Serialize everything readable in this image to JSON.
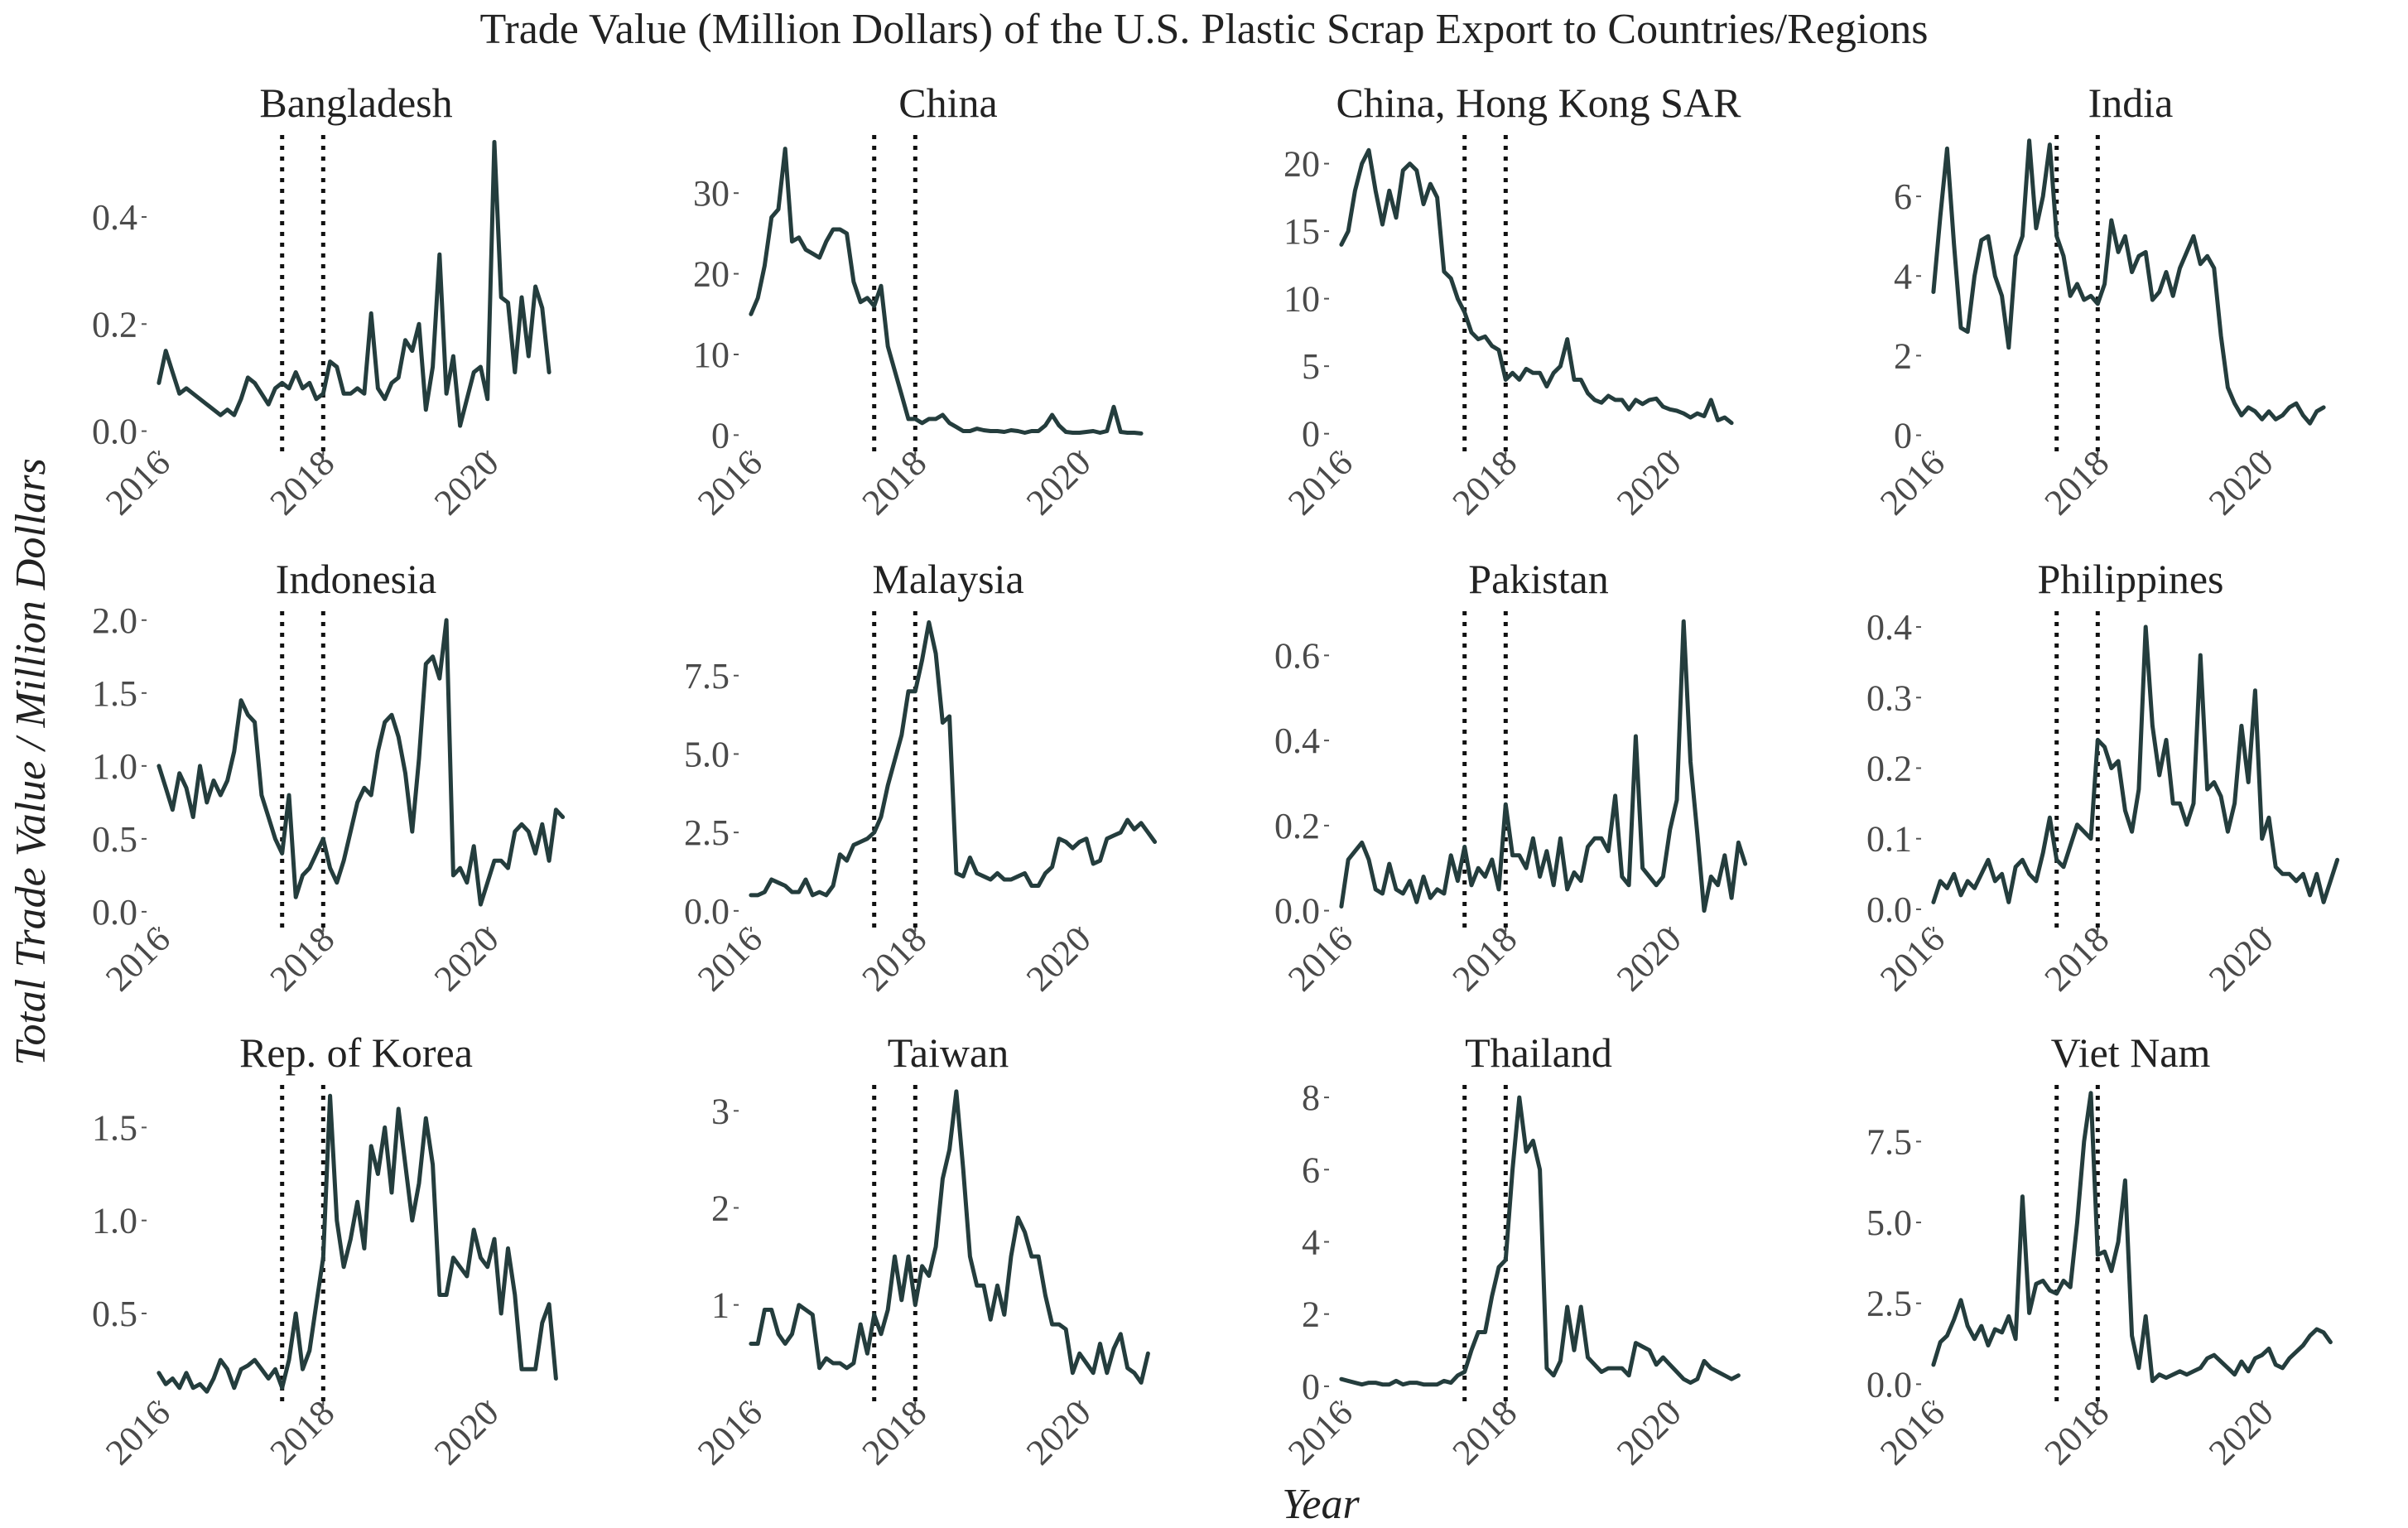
{
  "title": "Trade Value (Million Dollars) of the U.S. Plastic Scrap Export to Countries/Regions",
  "xlabel": "Year",
  "ylabel": "Total Trade Value / Million Dollars",
  "line_color": "#243d3d",
  "chart_data": {
    "type": "line",
    "title": "Trade Value (Million Dollars) of the U.S. Plastic Scrap Export to Countries/Regions",
    "xlabel": "Year",
    "ylabel": "Total Trade Value / Million Dollars",
    "grid": false,
    "x_start": 2016.0,
    "x_step": 0.08333,
    "xlim": [
      2015.88,
      2020.92
    ],
    "x_ticks": [
      2016,
      2018,
      2020
    ],
    "x_tick_labels": [
      "2016",
      "2018",
      "2020"
    ],
    "reference_lines": [
      2017.5,
      2018.0
    ],
    "panels": [
      {
        "name": "Bangladesh",
        "ylim": [
          -0.03,
          0.55
        ],
        "y_ticks": [
          0.0,
          0.2,
          0.4
        ],
        "y_tick_labels": [
          "0.0",
          "0.2",
          "0.4"
        ],
        "values": [
          0.09,
          0.15,
          0.11,
          0.07,
          0.08,
          0.07,
          0.06,
          0.05,
          0.04,
          0.03,
          0.04,
          0.03,
          0.06,
          0.1,
          0.09,
          0.07,
          0.05,
          0.08,
          0.09,
          0.08,
          0.11,
          0.08,
          0.09,
          0.06,
          0.07,
          0.13,
          0.12,
          0.07,
          0.07,
          0.08,
          0.07,
          0.22,
          0.08,
          0.06,
          0.09,
          0.1,
          0.17,
          0.15,
          0.2,
          0.04,
          0.12,
          0.33,
          0.07,
          0.14,
          0.01,
          0.06,
          0.11,
          0.12,
          0.06,
          0.54,
          0.25,
          0.24,
          0.11,
          0.25,
          0.14,
          0.27,
          0.23,
          0.11
        ]
      },
      {
        "name": "China",
        "ylim": [
          -1.5,
          37
        ],
        "y_ticks": [
          0,
          10,
          20,
          30
        ],
        "y_tick_labels": [
          "0",
          "10",
          "20",
          "30"
        ],
        "values": [
          15,
          17,
          21,
          27,
          28,
          35.5,
          24,
          24.5,
          23,
          22.5,
          22,
          24,
          25.5,
          25.5,
          25,
          19,
          16.5,
          17,
          16,
          18.5,
          11,
          8,
          5,
          2,
          2,
          1.5,
          2,
          2,
          2.5,
          1.5,
          1,
          0.5,
          0.5,
          0.8,
          0.6,
          0.5,
          0.5,
          0.4,
          0.6,
          0.5,
          0.3,
          0.5,
          0.5,
          1.2,
          2.5,
          1.2,
          0.4,
          0.3,
          0.3,
          0.4,
          0.5,
          0.3,
          0.5,
          3.5,
          0.4,
          0.3,
          0.3,
          0.2
        ]
      },
      {
        "name": "China, Hong Kong SAR",
        "ylim": [
          -1,
          22
        ],
        "y_ticks": [
          0,
          5,
          10,
          15,
          20
        ],
        "y_tick_labels": [
          "0",
          "5",
          "10",
          "15",
          "20"
        ],
        "values": [
          14,
          15,
          18,
          20,
          21,
          18,
          15.5,
          18,
          16,
          19.5,
          20,
          19.5,
          17,
          18.5,
          17.5,
          12,
          11.5,
          10,
          9,
          7.5,
          7,
          7.2,
          6.5,
          6.2,
          4,
          4.5,
          4,
          4.8,
          4.5,
          4.5,
          3.5,
          4.5,
          5,
          7,
          4,
          4,
          3,
          2.5,
          2.3,
          2.8,
          2.5,
          2.5,
          1.8,
          2.5,
          2.2,
          2.5,
          2.6,
          2.0,
          1.8,
          1.7,
          1.5,
          1.2,
          1.5,
          1.3,
          2.5,
          1.0,
          1.2,
          0.8
        ]
      },
      {
        "name": "India",
        "ylim": [
          -0.3,
          7.5
        ],
        "y_ticks": [
          0,
          2,
          4,
          6
        ],
        "y_tick_labels": [
          "0",
          "2",
          "4",
          "6"
        ],
        "values": [
          3.6,
          5.5,
          7.2,
          4.8,
          2.7,
          2.6,
          4,
          4.9,
          5,
          4,
          3.5,
          2.2,
          4.5,
          5,
          7.4,
          5.2,
          6,
          7.3,
          5,
          4.5,
          3.5,
          3.8,
          3.4,
          3.5,
          3.3,
          3.8,
          5.4,
          4.6,
          5,
          4.1,
          4.5,
          4.6,
          3.4,
          3.6,
          4.1,
          3.5,
          4.2,
          4.6,
          5,
          4.3,
          4.5,
          4.2,
          2.5,
          1.2,
          0.8,
          0.5,
          0.7,
          0.6,
          0.4,
          0.6,
          0.4,
          0.5,
          0.7,
          0.8,
          0.5,
          0.3,
          0.6,
          0.7
        ]
      },
      {
        "name": "Indonesia",
        "ylim": [
          -0.08,
          2.05
        ],
        "y_ticks": [
          0.0,
          0.5,
          1.0,
          1.5,
          2.0
        ],
        "y_tick_labels": [
          "0.0",
          "0.5",
          "1.0",
          "1.5",
          "2.0"
        ],
        "values": [
          1.0,
          0.85,
          0.7,
          0.95,
          0.85,
          0.65,
          1.0,
          0.75,
          0.9,
          0.8,
          0.9,
          1.1,
          1.45,
          1.35,
          1.3,
          0.8,
          0.65,
          0.5,
          0.4,
          0.8,
          0.1,
          0.25,
          0.3,
          0.4,
          0.5,
          0.3,
          0.2,
          0.35,
          0.55,
          0.75,
          0.85,
          0.8,
          1.1,
          1.3,
          1.35,
          1.2,
          0.95,
          0.55,
          1.05,
          1.7,
          1.75,
          1.6,
          2.0,
          0.25,
          0.3,
          0.2,
          0.45,
          0.05,
          0.2,
          0.35,
          0.35,
          0.3,
          0.55,
          0.6,
          0.55,
          0.4,
          0.6,
          0.35,
          0.7,
          0.65
        ]
      },
      {
        "name": "Malaysia",
        "ylim": [
          -0.4,
          9.5
        ],
        "y_ticks": [
          0.0,
          2.5,
          5.0,
          7.5
        ],
        "y_tick_labels": [
          "0.0",
          "2.5",
          "5.0",
          "7.5"
        ],
        "values": [
          0.5,
          0.5,
          0.6,
          1.0,
          0.9,
          0.8,
          0.6,
          0.6,
          1.0,
          0.5,
          0.6,
          0.5,
          0.8,
          1.8,
          1.6,
          2.1,
          2.2,
          2.3,
          2.5,
          3.0,
          4.0,
          4.8,
          5.6,
          7.0,
          7.0,
          8.0,
          9.2,
          8.2,
          6.0,
          6.2,
          1.2,
          1.1,
          1.7,
          1.2,
          1.1,
          1.0,
          1.2,
          1.0,
          1.0,
          1.1,
          1.2,
          0.8,
          0.8,
          1.2,
          1.4,
          2.3,
          2.2,
          2.0,
          2.2,
          2.3,
          1.5,
          1.6,
          2.3,
          2.4,
          2.5,
          2.9,
          2.6,
          2.8,
          2.5,
          2.2
        ]
      },
      {
        "name": "Pakistan",
        "ylim": [
          -0.03,
          0.7
        ],
        "y_ticks": [
          0.0,
          0.2,
          0.4,
          0.6
        ],
        "y_tick_labels": [
          "0.0",
          "0.2",
          "0.4",
          "0.6"
        ],
        "values": [
          0.01,
          0.12,
          0.14,
          0.16,
          0.12,
          0.05,
          0.04,
          0.11,
          0.05,
          0.04,
          0.07,
          0.02,
          0.08,
          0.03,
          0.05,
          0.04,
          0.13,
          0.07,
          0.15,
          0.06,
          0.1,
          0.08,
          0.12,
          0.05,
          0.25,
          0.13,
          0.13,
          0.1,
          0.17,
          0.08,
          0.14,
          0.06,
          0.17,
          0.05,
          0.09,
          0.07,
          0.15,
          0.17,
          0.17,
          0.14,
          0.27,
          0.08,
          0.06,
          0.41,
          0.1,
          0.08,
          0.06,
          0.08,
          0.19,
          0.26,
          0.68,
          0.35,
          0.18,
          0.0,
          0.08,
          0.06,
          0.13,
          0.03,
          0.16,
          0.11
        ]
      },
      {
        "name": "Philippines",
        "ylim": [
          -0.02,
          0.42
        ],
        "y_ticks": [
          0.0,
          0.1,
          0.2,
          0.3,
          0.4
        ],
        "y_tick_labels": [
          "0.0",
          "0.1",
          "0.2",
          "0.3",
          "0.4"
        ],
        "values": [
          0.01,
          0.04,
          0.03,
          0.05,
          0.02,
          0.04,
          0.03,
          0.05,
          0.07,
          0.04,
          0.05,
          0.01,
          0.06,
          0.07,
          0.05,
          0.04,
          0.08,
          0.13,
          0.07,
          0.06,
          0.09,
          0.12,
          0.11,
          0.1,
          0.24,
          0.23,
          0.2,
          0.21,
          0.14,
          0.11,
          0.17,
          0.4,
          0.26,
          0.19,
          0.24,
          0.15,
          0.15,
          0.12,
          0.15,
          0.36,
          0.17,
          0.18,
          0.16,
          0.11,
          0.15,
          0.26,
          0.18,
          0.31,
          0.1,
          0.13,
          0.06,
          0.05,
          0.05,
          0.04,
          0.05,
          0.02,
          0.05,
          0.01,
          0.04,
          0.07
        ]
      },
      {
        "name": "Rep. of Korea",
        "ylim": [
          0.05,
          1.72
        ],
        "y_ticks": [
          0.5,
          1.0,
          1.5
        ],
        "y_tick_labels": [
          "0.5",
          "1.0",
          "1.5"
        ],
        "values": [
          0.18,
          0.12,
          0.15,
          0.1,
          0.18,
          0.1,
          0.12,
          0.08,
          0.15,
          0.25,
          0.2,
          0.1,
          0.2,
          0.22,
          0.25,
          0.2,
          0.15,
          0.2,
          0.1,
          0.25,
          0.5,
          0.2,
          0.3,
          0.55,
          0.8,
          1.67,
          1.0,
          0.75,
          0.9,
          1.1,
          0.85,
          1.4,
          1.25,
          1.5,
          1.15,
          1.6,
          1.3,
          1.0,
          1.2,
          1.55,
          1.3,
          0.6,
          0.6,
          0.8,
          0.75,
          0.7,
          0.95,
          0.8,
          0.75,
          0.9,
          0.5,
          0.85,
          0.6,
          0.2,
          0.2,
          0.2,
          0.45,
          0.55,
          0.15
        ]
      },
      {
        "name": "Taiwan",
        "ylim": [
          0.05,
          3.25
        ],
        "y_ticks": [
          1,
          2,
          3
        ],
        "y_tick_labels": [
          "1",
          "2",
          "3"
        ],
        "values": [
          0.6,
          0.6,
          0.95,
          0.95,
          0.7,
          0.6,
          0.7,
          1.0,
          0.95,
          0.9,
          0.35,
          0.45,
          0.4,
          0.4,
          0.35,
          0.4,
          0.8,
          0.5,
          0.9,
          0.7,
          0.95,
          1.5,
          1.05,
          1.5,
          1.0,
          1.4,
          1.3,
          1.6,
          2.3,
          2.6,
          3.2,
          2.4,
          1.5,
          1.2,
          1.2,
          0.85,
          1.2,
          0.9,
          1.5,
          1.9,
          1.75,
          1.5,
          1.5,
          1.1,
          0.8,
          0.8,
          0.75,
          0.3,
          0.5,
          0.4,
          0.3,
          0.6,
          0.3,
          0.55,
          0.7,
          0.35,
          0.3,
          0.2,
          0.5
        ]
      },
      {
        "name": "Thailand",
        "ylim": [
          -0.3,
          8.3
        ],
        "y_ticks": [
          0,
          2,
          4,
          6,
          8
        ],
        "y_tick_labels": [
          "0",
          "2",
          "4",
          "6",
          "8"
        ],
        "values": [
          0.2,
          0.15,
          0.1,
          0.05,
          0.1,
          0.1,
          0.05,
          0.05,
          0.15,
          0.05,
          0.1,
          0.1,
          0.05,
          0.05,
          0.05,
          0.15,
          0.1,
          0.3,
          0.4,
          1.0,
          1.5,
          1.5,
          2.5,
          3.3,
          3.5,
          6.0,
          8.0,
          6.5,
          6.8,
          6.0,
          0.5,
          0.3,
          0.7,
          2.2,
          1.0,
          2.2,
          0.8,
          0.6,
          0.4,
          0.5,
          0.5,
          0.5,
          0.3,
          1.2,
          1.1,
          1.0,
          0.6,
          0.8,
          0.6,
          0.4,
          0.2,
          0.1,
          0.2,
          0.7,
          0.5,
          0.4,
          0.3,
          0.2,
          0.3
        ]
      },
      {
        "name": "Viet Nam",
        "ylim": [
          -0.4,
          9.2
        ],
        "y_ticks": [
          0.0,
          2.5,
          5.0,
          7.5
        ],
        "y_tick_labels": [
          "0.0",
          "2.5",
          "5.0",
          "7.5"
        ],
        "values": [
          0.6,
          1.3,
          1.5,
          2.0,
          2.6,
          1.8,
          1.4,
          1.8,
          1.2,
          1.7,
          1.6,
          2.1,
          1.4,
          5.8,
          2.2,
          3.1,
          3.2,
          2.9,
          2.8,
          3.2,
          3.0,
          5.0,
          7.5,
          9.0,
          4.0,
          4.1,
          3.5,
          4.4,
          6.3,
          1.5,
          0.5,
          2.1,
          0.1,
          0.3,
          0.2,
          0.3,
          0.4,
          0.3,
          0.4,
          0.5,
          0.8,
          0.9,
          0.7,
          0.5,
          0.3,
          0.7,
          0.4,
          0.8,
          0.9,
          1.1,
          0.6,
          0.5,
          0.8,
          1.0,
          1.2,
          1.5,
          1.7,
          1.6,
          1.3
        ]
      }
    ]
  }
}
